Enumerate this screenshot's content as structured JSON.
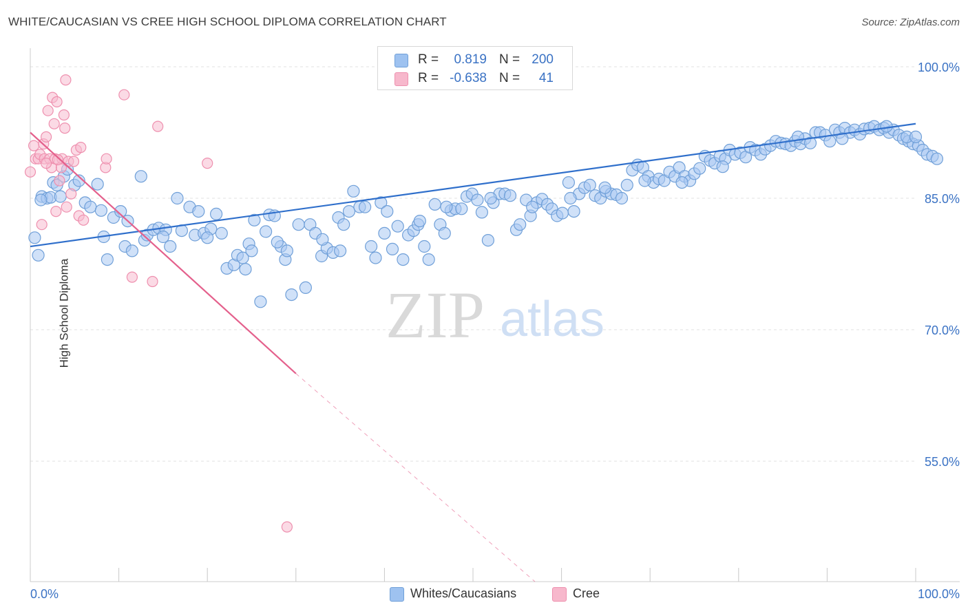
{
  "header": {
    "title": "WHITE/CAUCASIAN VS CREE HIGH SCHOOL DIPLOMA CORRELATION CHART",
    "source": "Source: ZipAtlas.com"
  },
  "watermark": {
    "zip": "ZIP",
    "atlas": "atlas"
  },
  "legend_top": {
    "rows": [
      {
        "r_label": "R =",
        "r_value": "0.819",
        "n_label": "N =",
        "n_value": "200",
        "color": "#9ec2f0"
      },
      {
        "r_label": "R =",
        "r_value": "-0.638",
        "n_label": "N =",
        "n_value": "41",
        "color": "#f7b8cc"
      }
    ]
  },
  "legend_bottom": {
    "items": [
      {
        "label": "Whites/Caucasians",
        "color": "#9ec2f0"
      },
      {
        "label": "Cree",
        "color": "#f7b8cc"
      }
    ]
  },
  "colors": {
    "blue_fill": "#a9c8f2",
    "blue_stroke": "#6f9fd8",
    "blue_line": "#2f6fcb",
    "pink_fill": "#f7bcd0",
    "pink_stroke": "#ee8fae",
    "pink_line": "#e4608c",
    "grid": "#e1e1e1",
    "axis_label": "#3a72c4"
  },
  "chart_data": {
    "type": "scatter",
    "title": "WHITE/CAUCASIAN VS CREE HIGH SCHOOL DIPLOMA CORRELATION CHART",
    "xlabel": "",
    "ylabel": "High School Diploma",
    "xlim": [
      0,
      100
    ],
    "ylim": [
      40,
      102
    ],
    "x_tick_labels": [
      "0.0%",
      "100.0%"
    ],
    "y_ticks": [
      55,
      70,
      85,
      100
    ],
    "y_tick_labels": [
      "55.0%",
      "70.0%",
      "85.0%",
      "100.0%"
    ],
    "grid": true,
    "legend_position": "top-center",
    "series": [
      {
        "name": "Whites/Caucasians",
        "R": 0.819,
        "N": 200,
        "trend": {
          "x": [
            0,
            100
          ],
          "y": [
            79.5,
            93.5
          ]
        },
        "points": [
          [
            0.5,
            80.5
          ],
          [
            0.9,
            78.5
          ],
          [
            1.3,
            85.2
          ],
          [
            1.9,
            85.0
          ],
          [
            2.3,
            85.1
          ],
          [
            2.6,
            86.8
          ],
          [
            3.0,
            86.5
          ],
          [
            3.8,
            87.5
          ],
          [
            4.2,
            88.3
          ],
          [
            5.0,
            86.5
          ],
          [
            5.5,
            87.0
          ],
          [
            6.2,
            84.5
          ],
          [
            6.8,
            84.0
          ],
          [
            7.6,
            86.6
          ],
          [
            8.3,
            80.6
          ],
          [
            8.7,
            78.0
          ],
          [
            9.4,
            82.8
          ],
          [
            10.2,
            83.5
          ],
          [
            10.7,
            79.5
          ],
          [
            11.0,
            82.4
          ],
          [
            11.5,
            79.0
          ],
          [
            12.5,
            87.5
          ],
          [
            12.9,
            80.2
          ],
          [
            13.2,
            80.8
          ],
          [
            13.9,
            81.4
          ],
          [
            14.5,
            81.6
          ],
          [
            15.3,
            81.4
          ],
          [
            15.8,
            79.5
          ],
          [
            16.6,
            85.0
          ],
          [
            17.1,
            81.3
          ],
          [
            18.0,
            84.0
          ],
          [
            18.6,
            80.8
          ],
          [
            19.0,
            83.5
          ],
          [
            19.6,
            81.0
          ],
          [
            20.4,
            81.5
          ],
          [
            21.0,
            83.2
          ],
          [
            21.6,
            81.0
          ],
          [
            22.2,
            77.0
          ],
          [
            23.0,
            77.4
          ],
          [
            23.4,
            78.5
          ],
          [
            24.0,
            78.2
          ],
          [
            24.7,
            79.8
          ],
          [
            25.3,
            82.5
          ],
          [
            26.0,
            73.2
          ],
          [
            26.6,
            81.2
          ],
          [
            27.0,
            83.1
          ],
          [
            27.6,
            83.0
          ],
          [
            28.3,
            79.5
          ],
          [
            28.8,
            78.0
          ],
          [
            29.5,
            74.0
          ],
          [
            30.3,
            82.0
          ],
          [
            31.1,
            74.8
          ],
          [
            31.6,
            82.0
          ],
          [
            32.2,
            81.0
          ],
          [
            32.9,
            78.4
          ],
          [
            33.5,
            79.3
          ],
          [
            34.2,
            78.8
          ],
          [
            34.8,
            82.8
          ],
          [
            35.4,
            82.0
          ],
          [
            36.0,
            83.5
          ],
          [
            36.5,
            85.8
          ],
          [
            37.2,
            84.0
          ],
          [
            37.8,
            84.0
          ],
          [
            38.5,
            79.5
          ],
          [
            39.0,
            78.2
          ],
          [
            39.6,
            84.5
          ],
          [
            40.3,
            83.5
          ],
          [
            40.9,
            79.2
          ],
          [
            41.5,
            81.8
          ],
          [
            42.1,
            78.0
          ],
          [
            42.7,
            80.8
          ],
          [
            43.3,
            81.3
          ],
          [
            43.8,
            82.0
          ],
          [
            44.5,
            79.5
          ],
          [
            45.0,
            78.0
          ],
          [
            45.7,
            84.3
          ],
          [
            46.3,
            82.0
          ],
          [
            46.8,
            81.0
          ],
          [
            47.5,
            83.6
          ],
          [
            48.0,
            83.8
          ],
          [
            48.7,
            83.8
          ],
          [
            49.3,
            85.2
          ],
          [
            49.9,
            85.5
          ],
          [
            50.5,
            84.8
          ],
          [
            51.0,
            83.4
          ],
          [
            51.7,
            80.2
          ],
          [
            52.3,
            84.5
          ],
          [
            53.0,
            85.5
          ],
          [
            53.6,
            85.5
          ],
          [
            54.2,
            85.3
          ],
          [
            54.9,
            81.4
          ],
          [
            55.3,
            82.0
          ],
          [
            56.0,
            84.8
          ],
          [
            56.5,
            83.0
          ],
          [
            57.2,
            84.5
          ],
          [
            57.8,
            84.9
          ],
          [
            58.4,
            84.3
          ],
          [
            58.9,
            83.8
          ],
          [
            59.5,
            83.0
          ],
          [
            60.1,
            83.3
          ],
          [
            60.8,
            86.8
          ],
          [
            61.4,
            83.5
          ],
          [
            62.0,
            85.5
          ],
          [
            62.6,
            86.2
          ],
          [
            63.2,
            86.5
          ],
          [
            63.8,
            85.3
          ],
          [
            64.4,
            85.0
          ],
          [
            65.0,
            85.8
          ],
          [
            65.6,
            85.5
          ],
          [
            66.2,
            85.4
          ],
          [
            66.8,
            85.0
          ],
          [
            67.4,
            86.5
          ],
          [
            68.0,
            88.2
          ],
          [
            68.6,
            88.8
          ],
          [
            69.2,
            88.5
          ],
          [
            69.8,
            87.5
          ],
          [
            70.4,
            86.8
          ],
          [
            71.0,
            87.2
          ],
          [
            71.6,
            87.0
          ],
          [
            72.2,
            88.0
          ],
          [
            72.8,
            87.5
          ],
          [
            73.3,
            88.5
          ],
          [
            73.9,
            87.5
          ],
          [
            74.5,
            87.0
          ],
          [
            75.0,
            87.8
          ],
          [
            75.6,
            88.4
          ],
          [
            76.2,
            89.8
          ],
          [
            76.8,
            89.3
          ],
          [
            77.3,
            89.0
          ],
          [
            77.9,
            89.8
          ],
          [
            78.5,
            89.5
          ],
          [
            79.0,
            90.5
          ],
          [
            79.6,
            90.0
          ],
          [
            80.2,
            90.2
          ],
          [
            80.8,
            89.7
          ],
          [
            81.3,
            90.8
          ],
          [
            81.9,
            90.5
          ],
          [
            82.5,
            90.0
          ],
          [
            83.0,
            90.6
          ],
          [
            83.6,
            91.0
          ],
          [
            84.2,
            91.5
          ],
          [
            84.8,
            91.3
          ],
          [
            85.3,
            91.2
          ],
          [
            85.9,
            91.0
          ],
          [
            86.4,
            91.5
          ],
          [
            87.0,
            91.2
          ],
          [
            87.5,
            91.8
          ],
          [
            88.1,
            91.3
          ],
          [
            88.7,
            92.5
          ],
          [
            89.2,
            92.5
          ],
          [
            89.8,
            92.2
          ],
          [
            90.3,
            91.5
          ],
          [
            90.9,
            92.8
          ],
          [
            91.4,
            92.5
          ],
          [
            92.0,
            93.0
          ],
          [
            92.6,
            92.5
          ],
          [
            93.1,
            92.8
          ],
          [
            93.7,
            92.3
          ],
          [
            94.2,
            92.9
          ],
          [
            94.8,
            93.0
          ],
          [
            95.3,
            93.2
          ],
          [
            95.9,
            92.8
          ],
          [
            96.4,
            93.0
          ],
          [
            97.0,
            92.5
          ],
          [
            97.5,
            92.8
          ],
          [
            98.1,
            92.2
          ],
          [
            98.6,
            91.8
          ],
          [
            99.2,
            91.5
          ],
          [
            99.7,
            91.2
          ],
          [
            100.3,
            91.0
          ],
          [
            100.8,
            90.5
          ],
          [
            101.3,
            90.0
          ],
          [
            101.9,
            89.8
          ],
          [
            102.4,
            89.5
          ],
          [
            1.2,
            84.8
          ],
          [
            3.4,
            85.2
          ],
          [
            8.0,
            83.6
          ],
          [
            15.0,
            80.6
          ],
          [
            20.0,
            80.5
          ],
          [
            24.3,
            76.9
          ],
          [
            25.0,
            79.0
          ],
          [
            27.9,
            80.0
          ],
          [
            29.0,
            79.0
          ],
          [
            33.0,
            80.3
          ],
          [
            35.0,
            79.0
          ],
          [
            40.0,
            81.0
          ],
          [
            44.0,
            82.4
          ],
          [
            47.0,
            84.0
          ],
          [
            52.0,
            85.0
          ],
          [
            56.7,
            84.0
          ],
          [
            61.0,
            85.0
          ],
          [
            64.9,
            86.2
          ],
          [
            69.4,
            87.0
          ],
          [
            73.6,
            86.8
          ],
          [
            78.2,
            88.6
          ],
          [
            86.7,
            92.0
          ],
          [
            91.7,
            91.8
          ],
          [
            96.7,
            93.2
          ],
          [
            99.0,
            92.0
          ],
          [
            100.0,
            92.0
          ]
        ]
      },
      {
        "name": "Cree",
        "R": -0.638,
        "N": 41,
        "trend": {
          "x": [
            0,
            30
          ],
          "y": [
            92.5,
            65.0
          ],
          "dashed_to": {
            "x": 57,
            "y": 40
          }
        },
        "points": [
          [
            0.0,
            88.0
          ],
          [
            0.4,
            91.0
          ],
          [
            0.6,
            89.5
          ],
          [
            0.9,
            89.5
          ],
          [
            1.1,
            90.0
          ],
          [
            1.3,
            82.0
          ],
          [
            1.5,
            91.2
          ],
          [
            1.6,
            89.5
          ],
          [
            1.8,
            92.0
          ],
          [
            2.0,
            95.0
          ],
          [
            2.2,
            89.5
          ],
          [
            2.4,
            88.5
          ],
          [
            2.5,
            96.5
          ],
          [
            2.7,
            93.5
          ],
          [
            2.8,
            89.5
          ],
          [
            2.9,
            83.5
          ],
          [
            3.0,
            96.0
          ],
          [
            3.3,
            87.0
          ],
          [
            3.5,
            88.5
          ],
          [
            3.6,
            89.5
          ],
          [
            3.8,
            94.5
          ],
          [
            3.9,
            93.0
          ],
          [
            4.0,
            98.5
          ],
          [
            4.1,
            84.0
          ],
          [
            4.3,
            89.2
          ],
          [
            4.6,
            85.5
          ],
          [
            4.9,
            89.2
          ],
          [
            5.2,
            90.5
          ],
          [
            5.5,
            83.0
          ],
          [
            5.7,
            90.8
          ],
          [
            6.0,
            82.5
          ],
          [
            8.5,
            88.5
          ],
          [
            8.6,
            89.5
          ],
          [
            10.6,
            96.8
          ],
          [
            11.5,
            76.0
          ],
          [
            13.8,
            75.5
          ],
          [
            14.4,
            93.2
          ],
          [
            20.0,
            89.0
          ],
          [
            29.0,
            47.5
          ],
          [
            1.8,
            89.0
          ],
          [
            3.1,
            89.4
          ]
        ]
      }
    ]
  }
}
